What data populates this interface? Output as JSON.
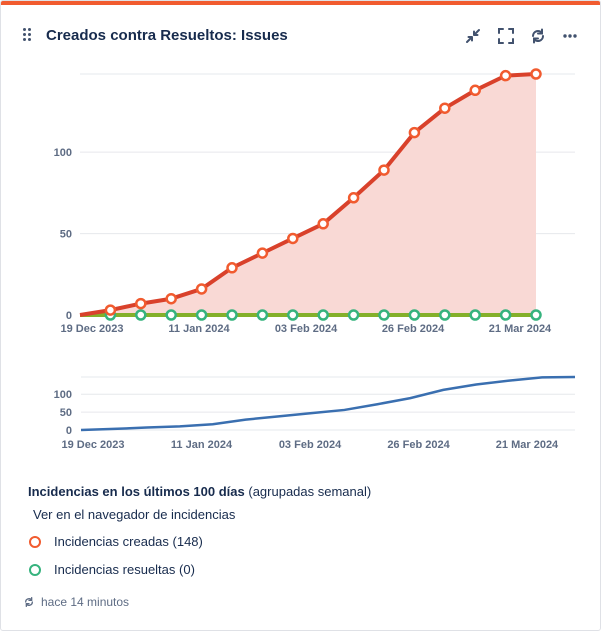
{
  "header": {
    "title": "Creados contra Resueltos: Issues",
    "icons": [
      "drag-handle-icon",
      "collapse-icon",
      "fullscreen-icon",
      "refresh-icon",
      "more-icon"
    ]
  },
  "chart_data": [
    {
      "type": "area",
      "title": "",
      "xlabel": "",
      "ylabel": "",
      "x_tick_labels": [
        "19 Dec 2023",
        "11 Jan 2024",
        "03 Feb 2024",
        "26 Feb 2024",
        "21 Mar 2024"
      ],
      "y_tick_labels": [
        "0",
        "50",
        "100"
      ],
      "ylim": [
        0,
        148
      ],
      "grid": true,
      "x": [
        0,
        1,
        2,
        3,
        4,
        5,
        6,
        7,
        8,
        9,
        10,
        11,
        12,
        13,
        14,
        15
      ],
      "series": [
        {
          "name": "Incidencias creadas",
          "color": "#d9412b",
          "marker_color": "#f15b2f",
          "fill": "#f9d9d5",
          "values": [
            0,
            3,
            7,
            10,
            16,
            29,
            38,
            47,
            56,
            72,
            89,
            112,
            127,
            138,
            147,
            148
          ]
        },
        {
          "name": "Incidencias resueltas",
          "color": "#84b02a",
          "marker_color": "#36b37e",
          "values": [
            0,
            0,
            0,
            0,
            0,
            0,
            0,
            0,
            0,
            0,
            0,
            0,
            0,
            0,
            0,
            0
          ]
        }
      ]
    },
    {
      "type": "line",
      "role": "navigator",
      "x_tick_labels": [
        "19 Dec 2023",
        "11 Jan 2024",
        "03 Feb 2024",
        "26 Feb 2024",
        "21 Mar 2024"
      ],
      "y_tick_labels": [
        "0",
        "50",
        "100"
      ],
      "ylim": [
        0,
        148
      ],
      "series": [
        {
          "name": "",
          "color": "#3a6fb0",
          "values": [
            0,
            3,
            7,
            10,
            16,
            29,
            38,
            47,
            56,
            72,
            89,
            112,
            127,
            138,
            147,
            148
          ]
        }
      ]
    }
  ],
  "legend": {
    "title_bold": "Incidencias en los últimos 100 días",
    "title_rest": " (agrupadas semanal)",
    "link": "Ver en el navegador de incidencias",
    "items": [
      {
        "label": "Incidencias creadas (148)",
        "color": "#f15b2f"
      },
      {
        "label": "Incidencias resueltas (0)",
        "color": "#36b37e"
      }
    ]
  },
  "footer": {
    "updated": "hace 14 minutos"
  }
}
